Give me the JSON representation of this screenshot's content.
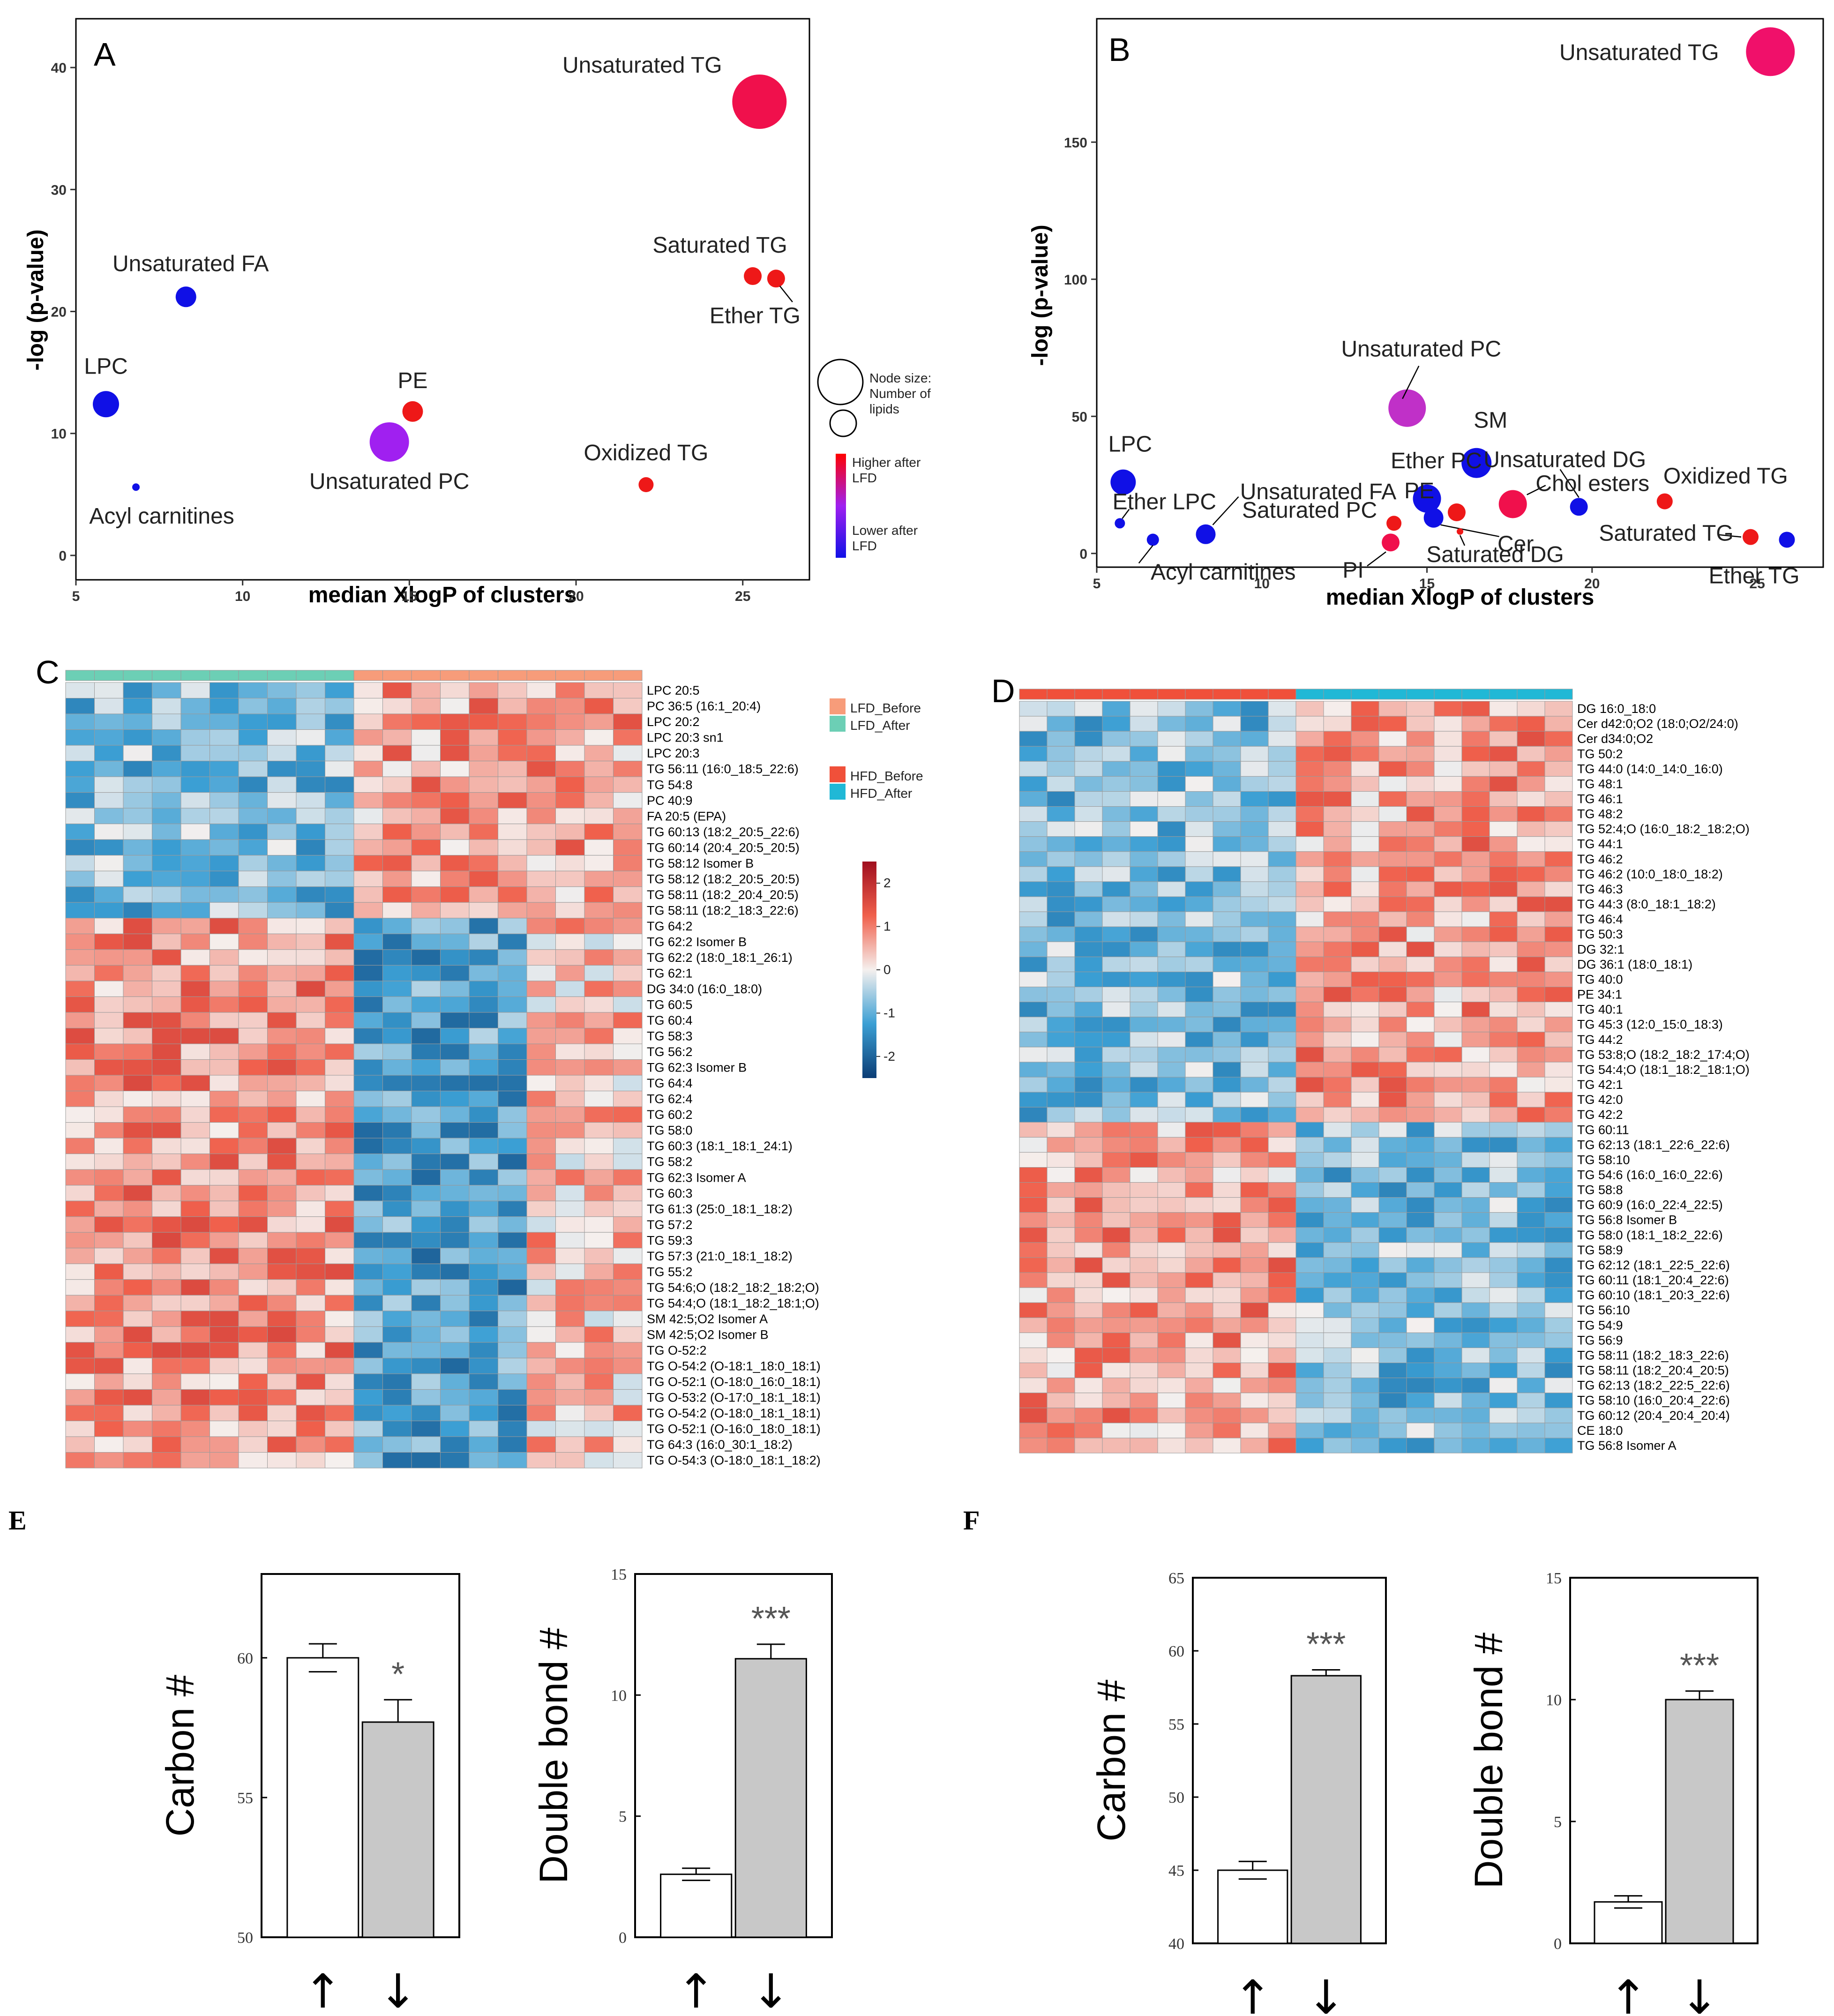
{
  "colors": {
    "bubble_blue": "#1010e6",
    "bubble_purple": "#a020f0",
    "bubble_magenta": "#c030c8",
    "bubble_pink": "#f0106a",
    "bubble_red": "#ee1818",
    "heat_low": "#0b3d75",
    "heat_mid": "#f5f0ee",
    "heat_high": "#a00e1e",
    "lfd_before": "#f79c7a",
    "lfd_after": "#6ccfb5",
    "hfd_before": "#f0503a",
    "hfd_after": "#20b8d6"
  },
  "chart_data": [
    {
      "panel": "A",
      "type": "scatter",
      "xlabel": "median XlogP of clusters",
      "ylabel": "-log (p-value)",
      "xlim": [
        5,
        27
      ],
      "ylim": [
        -2,
        44
      ],
      "xticks": [
        5,
        10,
        15,
        20,
        25
      ],
      "yticks": [
        0,
        10,
        20,
        30,
        40
      ],
      "legend": {
        "size_title": "Node size: Number of lipids",
        "color_high": "Higher after LFD",
        "color_low": "Lower after LFD"
      },
      "points": [
        {
          "label": "Unsaturated TG",
          "x": 25.5,
          "y": 37.2,
          "size": 58,
          "color": "#f0104c"
        },
        {
          "label": "Saturated TG",
          "x": 25.3,
          "y": 22.9,
          "size": 19,
          "color": "#ee1818"
        },
        {
          "label": "Ether TG",
          "x": 26.0,
          "y": 22.7,
          "size": 19,
          "color": "#ee1818"
        },
        {
          "label": "Unsaturated FA",
          "x": 8.3,
          "y": 21.2,
          "size": 22,
          "color": "#1010e6"
        },
        {
          "label": "LPC",
          "x": 5.9,
          "y": 12.4,
          "size": 28,
          "color": "#1010e6"
        },
        {
          "label": "PE",
          "x": 15.1,
          "y": 11.8,
          "size": 22,
          "color": "#ee1818"
        },
        {
          "label": "Unsaturated PC",
          "x": 14.4,
          "y": 9.3,
          "size": 42,
          "color": "#a020f0"
        },
        {
          "label": "Oxidized TG",
          "x": 22.1,
          "y": 5.8,
          "size": 16,
          "color": "#ee1818"
        },
        {
          "label": "Acyl carnitines",
          "x": 6.8,
          "y": 5.6,
          "size": 8,
          "color": "#1010e6"
        }
      ]
    },
    {
      "panel": "B",
      "type": "scatter",
      "xlabel": "median XlogP of clusters",
      "ylabel": "-log (p-value)",
      "xlim": [
        5,
        27
      ],
      "ylim": [
        -5,
        195
      ],
      "xticks": [
        5,
        10,
        15,
        20,
        25
      ],
      "yticks": [
        0,
        50,
        100,
        150
      ],
      "points": [
        {
          "label": "Unsaturated TG",
          "x": 25.4,
          "y": 183,
          "size": 52,
          "color": "#f0106a"
        },
        {
          "label": "Unsaturated PC",
          "x": 14.4,
          "y": 53,
          "size": 40,
          "color": "#c030c8"
        },
        {
          "label": "SM",
          "x": 16.5,
          "y": 33,
          "size": 32,
          "color": "#1010e6"
        },
        {
          "label": "LPC",
          "x": 5.8,
          "y": 26,
          "size": 27,
          "color": "#1010e6"
        },
        {
          "label": "Unsaturated DG",
          "x": 19.6,
          "y": 17,
          "size": 19,
          "color": "#1010e6"
        },
        {
          "label": "Chol esters",
          "x": 17.6,
          "y": 18,
          "size": 30,
          "color": "#f0104c"
        },
        {
          "label": "Oxidized TG",
          "x": 22.2,
          "y": 19,
          "size": 17,
          "color": "#ee1818"
        },
        {
          "label": "Ether PC",
          "x": 15.0,
          "y": 20,
          "size": 30,
          "color": "#1010e6"
        },
        {
          "label": "PE",
          "x": 15.9,
          "y": 15,
          "size": 19,
          "color": "#ee1818"
        },
        {
          "label": "Unsaturated FA",
          "x": 8.3,
          "y": 7,
          "size": 21,
          "color": "#1010e6"
        },
        {
          "label": "Saturated PC",
          "x": 14.0,
          "y": 11,
          "size": 16,
          "color": "#ee1818"
        },
        {
          "label": "PI",
          "x": 13.9,
          "y": 4,
          "size": 19,
          "color": "#f0104c"
        },
        {
          "label": "Ether LPC",
          "x": 5.7,
          "y": 11,
          "size": 11,
          "color": "#1010e6"
        },
        {
          "label": "Acyl carnitines",
          "x": 6.7,
          "y": 5,
          "size": 13,
          "color": "#1010e6"
        },
        {
          "label": "Cer",
          "x": 15.2,
          "y": 13,
          "size": 21,
          "color": "#1010e6"
        },
        {
          "label": "Saturated DG",
          "x": 16.0,
          "y": 8,
          "size": 7,
          "color": "#ee1818"
        },
        {
          "label": "Saturated TG",
          "x": 24.8,
          "y": 6,
          "size": 17,
          "color": "#ee1818"
        },
        {
          "label": "Ether TG",
          "x": 25.9,
          "y": 5,
          "size": 17,
          "color": "#1010e6"
        }
      ]
    },
    {
      "panel": "C",
      "type": "heatmap",
      "columns": 20,
      "groups": [
        {
          "label": "LFD_Before",
          "count": 10,
          "color": "#f79c7a"
        },
        {
          "label": "LFD_After",
          "count": 10,
          "color": "#6ccfb5"
        }
      ],
      "column_group_order": [
        1,
        1,
        1,
        1,
        1,
        1,
        1,
        1,
        1,
        1,
        0,
        0,
        0,
        0,
        0,
        0,
        0,
        0,
        0,
        0
      ],
      "scale": {
        "min": -2.5,
        "max": 2.5,
        "ticks": [
          2,
          1,
          0,
          -1,
          -2
        ]
      },
      "rows": [
        {
          "label": "LPC 20:5",
          "pattern": "down"
        },
        {
          "label": "PC 36:5 (16:1_20:4)",
          "pattern": "down"
        },
        {
          "label": "LPC 20:2",
          "pattern": "down"
        },
        {
          "label": "LPC 20:3 sn1",
          "pattern": "down"
        },
        {
          "label": "LPC 20:3",
          "pattern": "down"
        },
        {
          "label": "TG 56:11 (16:0_18:5_22:6)",
          "pattern": "down"
        },
        {
          "label": "TG 54:8",
          "pattern": "down"
        },
        {
          "label": "PC 40:9",
          "pattern": "down"
        },
        {
          "label": "FA 20:5 (EPA)",
          "pattern": "down"
        },
        {
          "label": "TG 60:13 (18:2_20:5_22:6)",
          "pattern": "down"
        },
        {
          "label": "TG 60:14 (20:4_20:5_20:5)",
          "pattern": "down"
        },
        {
          "label": "TG 58:12 Isomer B",
          "pattern": "down"
        },
        {
          "label": "TG 58:12 (18:2_20:5_20:5)",
          "pattern": "down"
        },
        {
          "label": "TG 58:11 (18:2_20:4_20:5)",
          "pattern": "down"
        },
        {
          "label": "TG 58:11 (18:2_18:3_22:6)",
          "pattern": "down"
        },
        {
          "label": "TG 64:2",
          "pattern": "up"
        },
        {
          "label": "TG 62:2 Isomer B",
          "pattern": "up"
        },
        {
          "label": "TG 62:2 (18:0_18:1_26:1)",
          "pattern": "up"
        },
        {
          "label": "TG 62:1",
          "pattern": "up"
        },
        {
          "label": "DG 34:0 (16:0_18:0)",
          "pattern": "up"
        },
        {
          "label": "TG 60:5",
          "pattern": "up"
        },
        {
          "label": "TG 60:4",
          "pattern": "up"
        },
        {
          "label": "TG 58:3",
          "pattern": "up"
        },
        {
          "label": "TG 56:2",
          "pattern": "up"
        },
        {
          "label": "TG 62:3 Isomer B",
          "pattern": "up"
        },
        {
          "label": "TG 64:4",
          "pattern": "up"
        },
        {
          "label": "TG 62:4",
          "pattern": "up"
        },
        {
          "label": "TG 60:2",
          "pattern": "up"
        },
        {
          "label": "TG 58:0",
          "pattern": "up"
        },
        {
          "label": "TG 60:3 (18:1_18:1_24:1)",
          "pattern": "up"
        },
        {
          "label": "TG 58:2",
          "pattern": "up"
        },
        {
          "label": "TG 62:3 Isomer A",
          "pattern": "up"
        },
        {
          "label": "TG 60:3",
          "pattern": "up"
        },
        {
          "label": "TG 61:3 (25:0_18:1_18:2)",
          "pattern": "up"
        },
        {
          "label": "TG 57:2",
          "pattern": "up"
        },
        {
          "label": "TG 59:3",
          "pattern": "up"
        },
        {
          "label": "TG 57:3 (21:0_18:1_18:2)",
          "pattern": "up"
        },
        {
          "label": "TG 55:2",
          "pattern": "up"
        },
        {
          "label": "TG 54:6;O (18:2_18:2_18:2;O)",
          "pattern": "up"
        },
        {
          "label": "TG 54:4;O (18:1_18:2_18:1;O)",
          "pattern": "up"
        },
        {
          "label": "SM 42:5;O2 Isomer A",
          "pattern": "up"
        },
        {
          "label": "SM 42:5;O2 Isomer B",
          "pattern": "up"
        },
        {
          "label": "TG O-52:2",
          "pattern": "up"
        },
        {
          "label": "TG O-54:2 (O-18:1_18:0_18:1)",
          "pattern": "up"
        },
        {
          "label": "TG O-52:1 (O-18:0_16:0_18:1)",
          "pattern": "up"
        },
        {
          "label": "TG O-53:2 (O-17:0_18:1_18:1)",
          "pattern": "up"
        },
        {
          "label": "TG O-54:2 (O-18:0_18:1_18:1)",
          "pattern": "up"
        },
        {
          "label": "TG O-52:1 (O-16:0_18:0_18:1)",
          "pattern": "up"
        },
        {
          "label": "TG 64:3 (16:0_30:1_18:2)",
          "pattern": "up"
        },
        {
          "label": "TG O-54:3 (O-18:0_18:1_18:2)",
          "pattern": "up"
        }
      ]
    },
    {
      "panel": "D",
      "type": "heatmap",
      "columns": 20,
      "groups": [
        {
          "label": "HFD_Before",
          "count": 10,
          "color": "#f0503a"
        },
        {
          "label": "HFD_After",
          "count": 10,
          "color": "#20b8d6"
        }
      ],
      "column_group_order": [
        0,
        0,
        0,
        0,
        0,
        0,
        0,
        0,
        0,
        0,
        1,
        1,
        1,
        1,
        1,
        1,
        1,
        1,
        1,
        1
      ],
      "rows": [
        {
          "label": "DG 16:0_18:0",
          "pattern": "down"
        },
        {
          "label": "Cer d42:0;O2 (18:0;O2/24:0)",
          "pattern": "down"
        },
        {
          "label": "Cer d34:0;O2",
          "pattern": "down"
        },
        {
          "label": "TG 50:2",
          "pattern": "down"
        },
        {
          "label": "TG 44:0 (14:0_14:0_16:0)",
          "pattern": "down"
        },
        {
          "label": "TG 48:1",
          "pattern": "down"
        },
        {
          "label": "TG 46:1",
          "pattern": "down"
        },
        {
          "label": "TG 48:2",
          "pattern": "down"
        },
        {
          "label": "TG 52:4;O (16:0_18:2_18:2;O)",
          "pattern": "down"
        },
        {
          "label": "TG 44:1",
          "pattern": "down"
        },
        {
          "label": "TG 46:2",
          "pattern": "down"
        },
        {
          "label": "TG 46:2 (10:0_18:0_18:2)",
          "pattern": "down"
        },
        {
          "label": "TG 46:3",
          "pattern": "down"
        },
        {
          "label": "TG 44:3 (8:0_18:1_18:2)",
          "pattern": "down"
        },
        {
          "label": "TG 46:4",
          "pattern": "down"
        },
        {
          "label": "TG 50:3",
          "pattern": "down"
        },
        {
          "label": "DG 32:1",
          "pattern": "down"
        },
        {
          "label": "DG 36:1 (18:0_18:1)",
          "pattern": "down"
        },
        {
          "label": "TG 40:0",
          "pattern": "down"
        },
        {
          "label": "PE 34:1",
          "pattern": "down"
        },
        {
          "label": "TG 40:1",
          "pattern": "down"
        },
        {
          "label": "TG 45:3 (12:0_15:0_18:3)",
          "pattern": "down"
        },
        {
          "label": "TG 44:2",
          "pattern": "down"
        },
        {
          "label": "TG 53:8;O (18:2_18:2_17:4;O)",
          "pattern": "down"
        },
        {
          "label": "TG 54:4;O (18:1_18:2_18:1;O)",
          "pattern": "down"
        },
        {
          "label": "TG 42:1",
          "pattern": "down"
        },
        {
          "label": "TG 42:0",
          "pattern": "down"
        },
        {
          "label": "TG 42:2",
          "pattern": "down"
        },
        {
          "label": "TG 60:11",
          "pattern": "up"
        },
        {
          "label": "TG 62:13 (18:1_22:6_22:6)",
          "pattern": "up"
        },
        {
          "label": "TG 58:10",
          "pattern": "up"
        },
        {
          "label": "TG 54:6 (16:0_16:0_22:6)",
          "pattern": "up"
        },
        {
          "label": "TG 58:8",
          "pattern": "up"
        },
        {
          "label": "TG 60:9 (16:0_22:4_22:5)",
          "pattern": "up"
        },
        {
          "label": "TG 56:8 Isomer B",
          "pattern": "up"
        },
        {
          "label": "TG 58:0 (18:1_18:2_22:6)",
          "pattern": "up"
        },
        {
          "label": "TG 58:9",
          "pattern": "up"
        },
        {
          "label": "TG 62:12 (18:1_22:5_22:6)",
          "pattern": "up"
        },
        {
          "label": "TG 60:11 (18:1_20:4_22:6)",
          "pattern": "up"
        },
        {
          "label": "TG 60:10 (18:1_20:3_22:6)",
          "pattern": "up"
        },
        {
          "label": "TG 56:10",
          "pattern": "up"
        },
        {
          "label": "TG 54:9",
          "pattern": "up"
        },
        {
          "label": "TG 56:9",
          "pattern": "up"
        },
        {
          "label": "TG 58:11 (18:2_18:3_22:6)",
          "pattern": "up"
        },
        {
          "label": "TG 58:11 (18:2_20:4_20:5)",
          "pattern": "up"
        },
        {
          "label": "TG 62:13 (18:2_22:5_22:6)",
          "pattern": "up"
        },
        {
          "label": "TG 58:10 (16:0_20:4_22:6)",
          "pattern": "up"
        },
        {
          "label": "TG 60:12 (20:4_20:4_20:4)",
          "pattern": "up"
        },
        {
          "label": "CE 18:0",
          "pattern": "up"
        },
        {
          "label": "TG 56:8 Isomer A",
          "pattern": "up"
        }
      ]
    },
    {
      "panel": "E-left",
      "type": "bar",
      "ylabel": "Carbon #",
      "ylim": [
        50,
        63
      ],
      "yticks": [
        50,
        55,
        60
      ],
      "categories": [
        "↑",
        "↓"
      ],
      "values": [
        60.0,
        57.7
      ],
      "errors": [
        0.5,
        0.8
      ],
      "significance": "*"
    },
    {
      "panel": "E-right",
      "type": "bar",
      "ylabel": "Double bond #",
      "ylim": [
        0,
        15
      ],
      "yticks": [
        0,
        5,
        10,
        15
      ],
      "categories": [
        "↑",
        "↓"
      ],
      "values": [
        2.6,
        11.5
      ],
      "errors": [
        0.25,
        0.6
      ],
      "significance": "***"
    },
    {
      "panel": "F-left",
      "type": "bar",
      "ylabel": "Carbon #",
      "ylim": [
        40,
        65
      ],
      "yticks": [
        40,
        45,
        50,
        55,
        60,
        65
      ],
      "categories": [
        "↑",
        "↓"
      ],
      "values": [
        45.0,
        58.3
      ],
      "errors": [
        0.6,
        0.4
      ],
      "significance": "***"
    },
    {
      "panel": "F-right",
      "type": "bar",
      "ylabel": "Double bond #",
      "ylim": [
        0,
        15
      ],
      "yticks": [
        0,
        5,
        10,
        15
      ],
      "categories": [
        "↑",
        "↓"
      ],
      "values": [
        1.7,
        10.0
      ],
      "errors": [
        0.25,
        0.35
      ],
      "significance": "***"
    }
  ],
  "panel_labels": {
    "a": "A",
    "b": "B",
    "c": "C",
    "d": "D",
    "e": "E",
    "f": "F"
  }
}
